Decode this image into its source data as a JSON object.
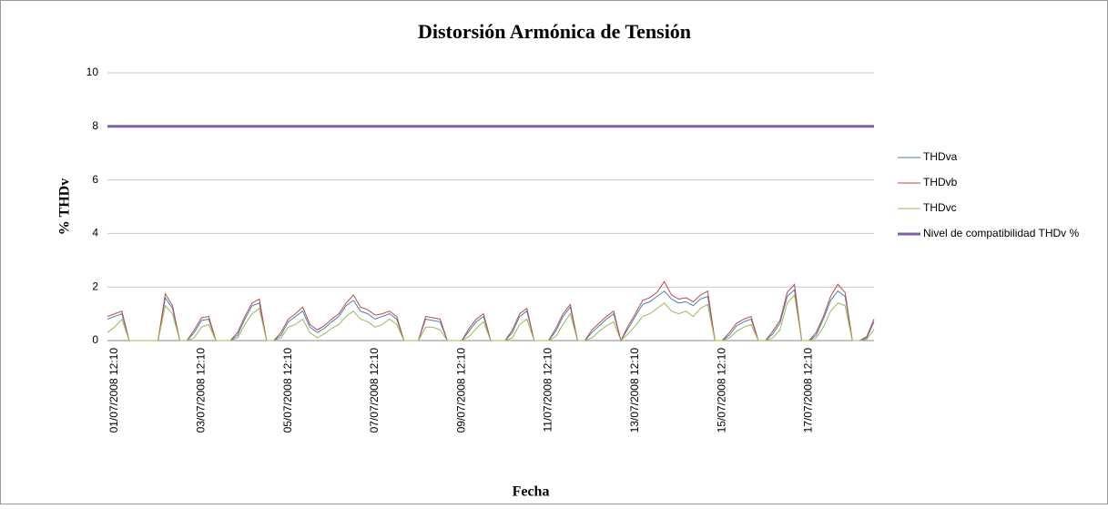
{
  "chart_data": {
    "type": "line",
    "title": "Distorsión Armónica de Tensión",
    "x_label": "Fecha",
    "y_label": "% THDv",
    "categories": [
      null,
      "01/07/2008 12:10",
      null,
      null,
      null,
      null,
      null,
      null,
      null,
      null,
      null,
      null,
      null,
      "03/07/2008 12:10",
      null,
      null,
      null,
      null,
      null,
      null,
      null,
      null,
      null,
      null,
      null,
      "05/07/2008 12:10",
      null,
      null,
      null,
      null,
      null,
      null,
      null,
      null,
      null,
      null,
      null,
      "07/07/2008 12:10",
      null,
      null,
      null,
      null,
      null,
      null,
      null,
      null,
      null,
      null,
      null,
      "09/07/2008 12:10",
      null,
      null,
      null,
      null,
      null,
      null,
      null,
      null,
      null,
      null,
      null,
      "11/07/2008 12:10",
      null,
      null,
      null,
      null,
      null,
      null,
      null,
      null,
      null,
      null,
      null,
      "13/07/2008 12:10",
      null,
      null,
      null,
      null,
      null,
      null,
      null,
      null,
      null,
      null,
      null,
      "15/07/2008 12:10",
      null,
      null,
      null,
      null,
      null,
      null,
      null,
      null,
      null,
      null,
      null,
      "17/07/2008 12:10",
      null,
      null,
      null,
      null,
      null,
      null,
      null,
      null,
      null
    ],
    "series": [
      {
        "name": "THDva",
        "color": "#4a7ebb",
        "values": [
          0.8,
          0.9,
          1.0,
          0,
          0,
          0,
          0,
          0,
          1.6,
          1.2,
          0,
          0,
          0.3,
          0.75,
          0.8,
          0,
          0,
          0,
          0.2,
          0.8,
          1.3,
          1.4,
          0,
          0,
          0.2,
          0.7,
          0.9,
          1.1,
          0.5,
          0.3,
          0.45,
          0.7,
          0.9,
          1.3,
          1.5,
          1.1,
          1.0,
          0.8,
          0.9,
          1.0,
          0.8,
          0,
          0,
          0,
          0.8,
          0.75,
          0.7,
          0,
          0,
          0,
          0.35,
          0.7,
          0.9,
          0,
          0,
          0,
          0.3,
          0.9,
          1.1,
          0,
          0,
          0,
          0.35,
          0.9,
          1.25,
          0,
          0,
          0.3,
          0.55,
          0.8,
          1.0,
          0,
          0.45,
          0.9,
          1.35,
          1.45,
          1.65,
          1.85,
          1.55,
          1.4,
          1.45,
          1.3,
          1.55,
          1.65,
          0,
          0,
          0.2,
          0.55,
          0.7,
          0.8,
          0,
          0,
          0.25,
          0.65,
          1.65,
          1.9,
          0,
          0,
          0.2,
          0.8,
          1.5,
          1.85,
          1.65,
          0,
          0,
          0.1,
          0.7
        ]
      },
      {
        "name": "THDvb",
        "color": "#be4b48",
        "values": [
          0.9,
          1.0,
          1.1,
          0,
          0,
          0,
          0,
          0,
          1.75,
          1.3,
          0,
          0,
          0.4,
          0.85,
          0.9,
          0,
          0,
          0,
          0.3,
          0.9,
          1.4,
          1.55,
          0,
          0,
          0.3,
          0.8,
          1.0,
          1.25,
          0.6,
          0.4,
          0.55,
          0.8,
          1.0,
          1.4,
          1.7,
          1.25,
          1.15,
          0.95,
          1.0,
          1.1,
          0.9,
          0,
          0,
          0,
          0.9,
          0.85,
          0.8,
          0,
          0,
          0,
          0.45,
          0.8,
          1.0,
          0,
          0,
          0,
          0.4,
          1.0,
          1.2,
          0,
          0,
          0,
          0.45,
          1.0,
          1.35,
          0,
          0,
          0.4,
          0.65,
          0.9,
          1.1,
          0,
          0.55,
          1.0,
          1.5,
          1.6,
          1.8,
          2.2,
          1.7,
          1.55,
          1.6,
          1.45,
          1.7,
          1.85,
          0,
          0,
          0.3,
          0.65,
          0.8,
          0.9,
          0,
          0,
          0.35,
          0.75,
          1.8,
          2.1,
          0,
          0,
          0.3,
          0.9,
          1.65,
          2.1,
          1.8,
          0,
          0,
          0.15,
          0.8
        ]
      },
      {
        "name": "THDvc",
        "color": "#98b954",
        "values": [
          0.3,
          0.5,
          0.8,
          0,
          0,
          0,
          0,
          0,
          1.3,
          1.0,
          0,
          0,
          0.1,
          0.5,
          0.6,
          0,
          0,
          0,
          0.1,
          0.6,
          1.0,
          1.2,
          0,
          0,
          0.1,
          0.5,
          0.6,
          0.8,
          0.3,
          0.1,
          0.25,
          0.45,
          0.6,
          0.9,
          1.1,
          0.8,
          0.7,
          0.5,
          0.6,
          0.8,
          0.6,
          0,
          0,
          0,
          0.5,
          0.5,
          0.4,
          0,
          0,
          0,
          0.15,
          0.45,
          0.7,
          0,
          0,
          0,
          0.1,
          0.6,
          0.8,
          0,
          0,
          0,
          0.15,
          0.6,
          1.0,
          0,
          0,
          0.1,
          0.35,
          0.55,
          0.7,
          0,
          0.25,
          0.55,
          0.9,
          1.0,
          1.2,
          1.4,
          1.1,
          1.0,
          1.1,
          0.9,
          1.2,
          1.35,
          0,
          0,
          0.1,
          0.35,
          0.5,
          0.6,
          0,
          0,
          0.1,
          0.4,
          1.4,
          1.7,
          0,
          0,
          0.1,
          0.5,
          1.1,
          1.4,
          1.3,
          0,
          0,
          0.05,
          0.4
        ]
      }
    ],
    "reference_line": {
      "name": "Nivel de compatibilidad THDv %",
      "color": "#7f5fa6",
      "value": 8
    },
    "ylim": [
      0,
      10
    ],
    "yticks": [
      0,
      2,
      4,
      6,
      8,
      10
    ],
    "grid": true,
    "legend": "right"
  }
}
